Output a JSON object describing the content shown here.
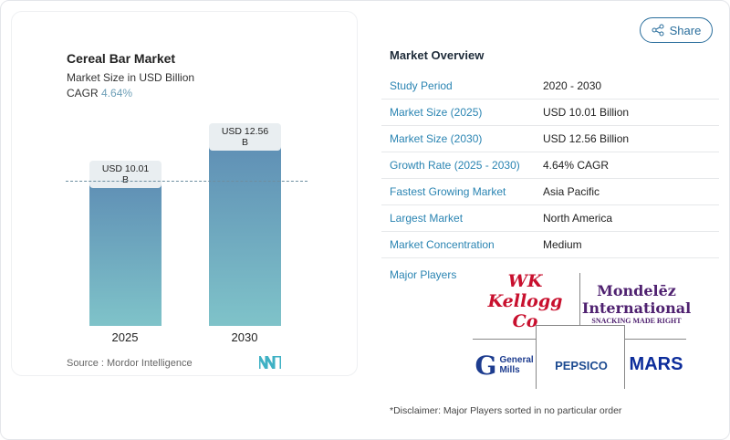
{
  "chart": {
    "title": "Cereal Bar Market",
    "subtitle": "Market Size in USD Billion",
    "cagr_label": "CAGR",
    "cagr_value": "4.64%",
    "source": "Source :  Mordor Intelligence"
  },
  "chart_data": {
    "type": "bar",
    "categories": [
      "2025",
      "2030"
    ],
    "values": [
      10.01,
      12.56
    ],
    "data_labels": [
      "USD 10.01 B",
      "USD 12.56 B"
    ],
    "title": "Cereal Bar Market",
    "ylabel": "Market Size in USD Billion",
    "colors": [
      "#5f8fb5",
      "#7fc3c9"
    ]
  },
  "share": {
    "label": "Share",
    "icon": "share-icon"
  },
  "overview": {
    "title": "Market Overview",
    "rows": [
      {
        "k": "Study Period",
        "v": "2020 - 2030"
      },
      {
        "k": "Market Size (2025)",
        "v": "USD 10.01 Billion"
      },
      {
        "k": "Market Size (2030)",
        "v": "USD 12.56 Billion"
      },
      {
        "k": "Growth Rate (2025 - 2030)",
        "v": "4.64% CAGR"
      },
      {
        "k": "Fastest Growing Market",
        "v": "Asia Pacific"
      },
      {
        "k": "Largest Market",
        "v": "North America"
      },
      {
        "k": "Market Concentration",
        "v": "Medium"
      }
    ]
  },
  "players": {
    "title": "Major Players",
    "logos": [
      "WK Kellogg Co",
      "Mondelēz International",
      "SNACKING MADE RIGHT",
      "General Mills",
      "PEPSICO",
      "MARS"
    ],
    "disclaimer": "*Disclaimer: Major Players sorted in no particular order"
  }
}
